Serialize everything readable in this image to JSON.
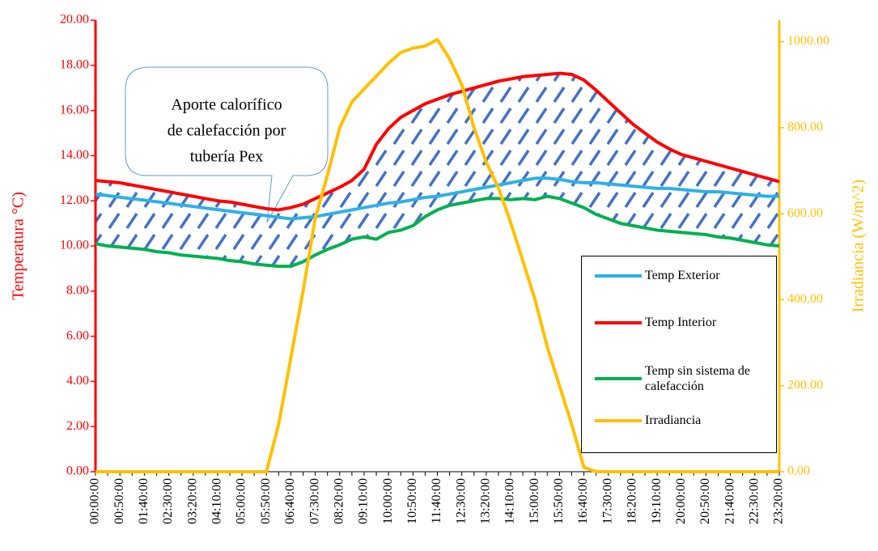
{
  "chart_data": {
    "type": "line",
    "annotation": [
      "Aporte calorífico",
      "de calefacción por",
      "tubería Pex"
    ],
    "ylabel": "Temperatura °C)",
    "y2label": "Irradiancia (W/m^2)",
    "categories": [
      "00:00:00",
      null,
      "00:50:00",
      null,
      "01:40:00",
      null,
      "02:30:00",
      null,
      "03:20:00",
      null,
      "04:10:00",
      null,
      "05:00:00",
      null,
      "05:50:00",
      null,
      "06:40:00",
      null,
      "07:30:00",
      null,
      "08:20:00",
      null,
      "09:10:00",
      null,
      "10:00:00",
      null,
      "10:50:00",
      null,
      "11:40:00",
      null,
      "12:30:00",
      null,
      "13:20:00",
      null,
      "14:10:00",
      null,
      "15:00:00",
      null,
      "15:50:00",
      null,
      "16:40:00",
      null,
      "17:30:00",
      null,
      "18:20:00",
      null,
      "19:10:00",
      null,
      "20:00:00",
      null,
      "20:50:00",
      null,
      "21:40:00",
      null,
      "22:30:00",
      null,
      "23:20:00"
    ],
    "ylim": [
      0,
      20
    ],
    "yticks": [
      {
        "value": 0,
        "label": "0.00"
      },
      {
        "value": 2,
        "label": "2.00"
      },
      {
        "value": 4,
        "label": "4.00"
      },
      {
        "value": 6,
        "label": "6.00"
      },
      {
        "value": 8,
        "label": "8.00"
      },
      {
        "value": 10,
        "label": "10.00"
      },
      {
        "value": 12,
        "label": "12.00"
      },
      {
        "value": 14,
        "label": "14.00"
      },
      {
        "value": 16,
        "label": "16.00"
      },
      {
        "value": 18,
        "label": "18.00"
      },
      {
        "value": 20,
        "label": "20.00"
      }
    ],
    "y2lim": [
      0,
      1050
    ],
    "y2ticks": [
      {
        "value": 0,
        "label": "0.00"
      },
      {
        "value": 200,
        "label": "200.00"
      },
      {
        "value": 400,
        "label": "400.00"
      },
      {
        "value": 600,
        "label": "600.00"
      },
      {
        "value": 800,
        "label": "800.00"
      },
      {
        "value": 1000,
        "label": "1000.00"
      }
    ],
    "ycolor": "#ff0000",
    "y2color": "#ffc000",
    "hatch_color": "#4472c4",
    "series": [
      {
        "name": "Temp Exterior",
        "color": "#2eb0e8",
        "values": [
          12.3,
          12.23,
          12.16,
          12.09,
          12.03,
          11.96,
          11.89,
          11.82,
          11.75,
          11.68,
          11.61,
          11.54,
          11.47,
          11.41,
          11.34,
          11.27,
          11.2,
          11.25,
          11.3,
          11.4,
          11.5,
          11.6,
          11.7,
          11.8,
          11.9,
          11.95,
          12.05,
          12.15,
          12.2,
          12.3,
          12.4,
          12.5,
          12.6,
          12.7,
          12.8,
          12.9,
          13.0,
          13.0,
          12.95,
          12.85,
          12.8,
          12.8,
          12.75,
          12.7,
          12.65,
          12.6,
          12.55,
          12.55,
          12.5,
          12.45,
          12.4,
          12.4,
          12.35,
          12.3,
          12.25,
          12.2,
          12.2
        ]
      },
      {
        "name": "Temp Interior",
        "color": "#ff0000",
        "values": [
          12.9,
          12.85,
          12.8,
          12.7,
          12.6,
          12.5,
          12.4,
          12.3,
          12.2,
          12.1,
          12.0,
          11.95,
          11.85,
          11.75,
          11.65,
          11.6,
          11.7,
          11.85,
          12.1,
          12.35,
          12.6,
          12.9,
          13.4,
          14.5,
          15.2,
          15.7,
          16.0,
          16.3,
          16.5,
          16.7,
          16.85,
          17.0,
          17.15,
          17.3,
          17.4,
          17.5,
          17.55,
          17.6,
          17.65,
          17.6,
          17.35,
          16.9,
          16.4,
          15.9,
          15.4,
          15.0,
          14.6,
          14.3,
          14.05,
          13.9,
          13.75,
          13.6,
          13.45,
          13.3,
          13.15,
          13.0,
          12.85
        ]
      },
      {
        "name": "Temp sin sistema de calefacción",
        "color": "#00b050",
        "values": [
          10.1,
          10.0,
          9.95,
          9.9,
          9.85,
          9.75,
          9.7,
          9.6,
          9.55,
          9.5,
          9.45,
          9.35,
          9.3,
          9.2,
          9.15,
          9.1,
          9.1,
          9.3,
          9.6,
          9.85,
          10.05,
          10.3,
          10.4,
          10.3,
          10.6,
          10.7,
          10.9,
          11.3,
          11.6,
          11.8,
          11.9,
          12.0,
          12.1,
          12.1,
          12.05,
          12.1,
          12.05,
          12.2,
          12.1,
          11.9,
          11.7,
          11.4,
          11.2,
          11.0,
          10.9,
          10.8,
          10.7,
          10.65,
          10.6,
          10.55,
          10.5,
          10.4,
          10.35,
          10.25,
          10.15,
          10.05,
          10.0
        ]
      },
      {
        "name": "Irradiancia",
        "color": "#ffc000",
        "axis": "y2",
        "values": [
          0,
          0,
          0,
          0,
          0,
          0,
          0,
          0,
          0,
          0,
          0,
          0,
          0,
          0,
          0,
          110,
          265,
          420,
          590,
          690,
          800,
          860,
          890,
          920,
          950,
          975,
          985,
          990,
          1005,
          960,
          900,
          800,
          720,
          660,
          580,
          490,
          400,
          290,
          200,
          110,
          10,
          0,
          0,
          0,
          0,
          0,
          0,
          0,
          0,
          0,
          0,
          0,
          0,
          0,
          0,
          0,
          0
        ]
      }
    ]
  }
}
